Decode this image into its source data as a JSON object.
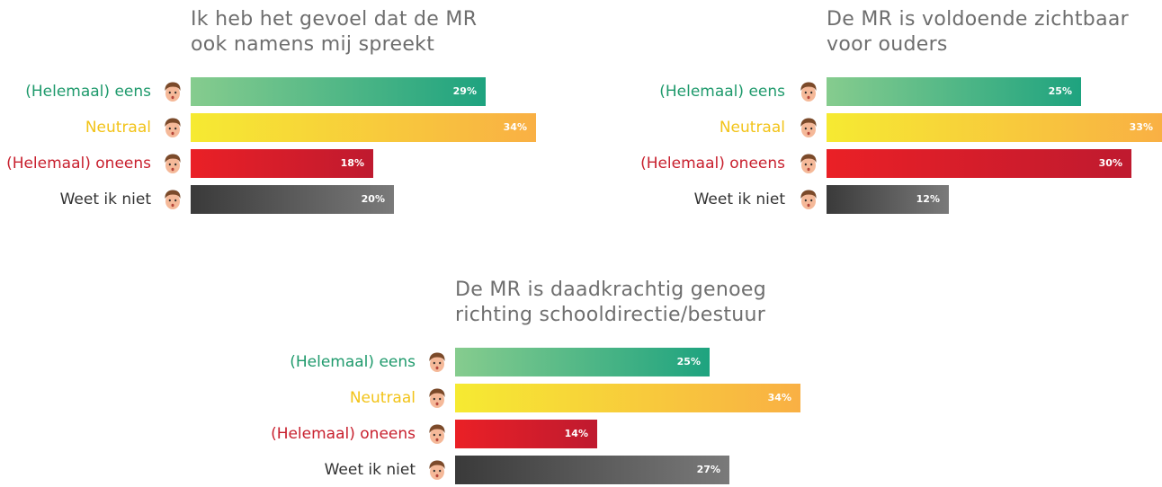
{
  "chart_data": [
    {
      "type": "bar",
      "orientation": "horizontal",
      "title_lines": [
        "Ik heb het gevoel dat de MR",
        "ook namens mij spreekt"
      ],
      "categories": [
        "(Helemaal) eens",
        "Neutraal",
        "(Helemaal) oneens",
        "Weet ik niet"
      ],
      "values": [
        29,
        34,
        18,
        20
      ],
      "value_labels": [
        "29%",
        "34%",
        "18%",
        "20%"
      ]
    },
    {
      "type": "bar",
      "orientation": "horizontal",
      "title_lines": [
        "De MR is voldoende zichtbaar",
        "voor ouders"
      ],
      "categories": [
        "(Helemaal) eens",
        "Neutraal",
        "(Helemaal) oneens",
        "Weet ik niet"
      ],
      "values": [
        25,
        33,
        30,
        12
      ],
      "value_labels": [
        "25%",
        "33%",
        "30%",
        "12%"
      ]
    },
    {
      "type": "bar",
      "orientation": "horizontal",
      "title_lines": [
        "De MR is daadkrachtig genoeg",
        "richting schooldirectie/bestuur"
      ],
      "categories": [
        "(Helemaal) eens",
        "Neutraal",
        "(Helemaal) oneens",
        "Weet ik niet"
      ],
      "values": [
        25,
        34,
        14,
        27
      ],
      "value_labels": [
        "25%",
        "34%",
        "14%",
        "27%"
      ]
    }
  ],
  "colors": {
    "eens": "#1f9a6c",
    "neutraal": "#f2c318",
    "oneens": "#c8202e",
    "weet_niet": "#333333",
    "title": "#6e6e6e"
  },
  "icons": {
    "row_icon": "person-face-icon"
  }
}
